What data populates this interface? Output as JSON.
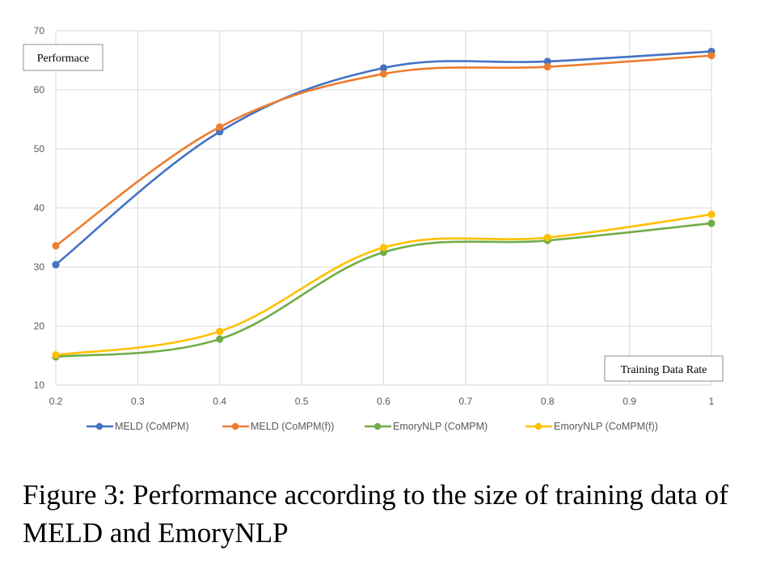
{
  "chart_data": {
    "type": "line",
    "smooth": true,
    "x": [
      0.2,
      0.4,
      0.6,
      0.8,
      1.0
    ],
    "x_ticks": [
      "0.2",
      "0.3",
      "0.4",
      "0.5",
      "0.6",
      "0.7",
      "0.8",
      "0.9",
      "1"
    ],
    "y_ticks": [
      "10",
      "20",
      "30",
      "40",
      "50",
      "60",
      "70"
    ],
    "xlim": [
      0.2,
      1.0
    ],
    "ylim": [
      10,
      70
    ],
    "grid": true,
    "ylabel": "Performace",
    "xlabel": "Training Data Rate",
    "legend_position": "bottom",
    "series": [
      {
        "name": "MELD (CoMPM)",
        "values": [
          30.4,
          52.9,
          63.7,
          64.8,
          66.5
        ],
        "color": "#4472C4"
      },
      {
        "name": "MELD (CoMPM(f))",
        "values": [
          33.6,
          53.7,
          62.7,
          63.9,
          65.8
        ],
        "color": "#ED7D31"
      },
      {
        "name": "EmoryNLP (CoMPM)",
        "values": [
          14.8,
          17.8,
          32.5,
          34.5,
          37.4
        ],
        "color": "#70AD47"
      },
      {
        "name": "EmoryNLP (CoMPM(f))",
        "values": [
          15.1,
          19.1,
          33.3,
          35.0,
          38.9
        ],
        "color": "#FFC000"
      }
    ]
  },
  "caption": "Figure 3: Performance according to the size of training data of MELD and EmoryNLP"
}
